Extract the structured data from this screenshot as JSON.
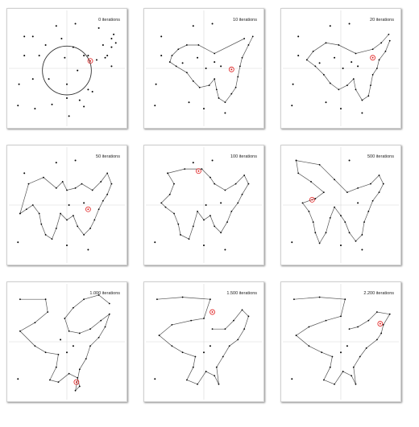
{
  "colors": {
    "background": "#ffffff",
    "panel_border": "#d0d0d0",
    "gridline": "#d8d8d8",
    "point": "#000000",
    "tour": "#555555",
    "highlight": "#e02020"
  },
  "panel_labels": [
    "0 iterations",
    "10 iterations",
    "20 iterations",
    "50 iterations",
    "100 iterations",
    "500 iterations",
    "1.000 iterations",
    "1.500 iterations",
    "2.200 iterations"
  ],
  "chart_data": [
    {
      "type": "scatter",
      "title": "0 iterations",
      "xlim": [
        0,
        1
      ],
      "ylim": [
        0,
        1
      ],
      "grid": true,
      "points": [
        [
          0.04,
          0.15
        ],
        [
          0.05,
          0.35
        ],
        [
          0.1,
          0.62
        ],
        [
          0.1,
          0.8
        ],
        [
          0.18,
          0.8
        ],
        [
          0.18,
          0.4
        ],
        [
          0.2,
          0.12
        ],
        [
          0.24,
          0.62
        ],
        [
          0.3,
          0.72
        ],
        [
          0.33,
          0.4
        ],
        [
          0.36,
          0.16
        ],
        [
          0.4,
          0.9
        ],
        [
          0.45,
          0.78
        ],
        [
          0.48,
          0.6
        ],
        [
          0.5,
          0.35
        ],
        [
          0.5,
          0.22
        ],
        [
          0.52,
          0.05
        ],
        [
          0.56,
          0.7
        ],
        [
          0.58,
          0.92
        ],
        [
          0.6,
          0.48
        ],
        [
          0.62,
          0.2
        ],
        [
          0.66,
          0.62
        ],
        [
          0.66,
          0.14
        ],
        [
          0.7,
          0.62
        ],
        [
          0.7,
          0.3
        ],
        [
          0.74,
          0.28
        ],
        [
          0.78,
          0.58
        ],
        [
          0.8,
          0.88
        ],
        [
          0.84,
          0.72
        ],
        [
          0.86,
          0.6
        ],
        [
          0.88,
          0.62
        ],
        [
          0.92,
          0.7
        ],
        [
          0.92,
          0.78
        ],
        [
          0.94,
          0.82
        ],
        [
          0.96,
          0.74
        ],
        [
          0.92,
          0.52
        ]
      ],
      "circle": {
        "cx": 0.5,
        "cy": 0.48,
        "r": 0.23
      },
      "highlight": [
        0.72,
        0.57
      ]
    },
    {
      "type": "line",
      "title": "10 iterations",
      "xlim": [
        0,
        1
      ],
      "ylim": [
        0,
        1
      ],
      "grid": true,
      "path": [
        [
          0.88,
          0.78
        ],
        [
          0.6,
          0.64
        ],
        [
          0.45,
          0.72
        ],
        [
          0.34,
          0.72
        ],
        [
          0.26,
          0.68
        ],
        [
          0.2,
          0.62
        ],
        [
          0.18,
          0.56
        ],
        [
          0.24,
          0.52
        ],
        [
          0.34,
          0.46
        ],
        [
          0.4,
          0.38
        ],
        [
          0.46,
          0.32
        ],
        [
          0.55,
          0.34
        ],
        [
          0.6,
          0.4
        ],
        [
          0.62,
          0.3
        ],
        [
          0.64,
          0.22
        ],
        [
          0.7,
          0.18
        ],
        [
          0.76,
          0.26
        ],
        [
          0.8,
          0.32
        ],
        [
          0.82,
          0.42
        ],
        [
          0.84,
          0.52
        ],
        [
          0.86,
          0.6
        ],
        [
          0.92,
          0.72
        ],
        [
          0.96,
          0.8
        ]
      ],
      "points": [
        [
          0.04,
          0.15
        ],
        [
          0.05,
          0.35
        ],
        [
          0.1,
          0.62
        ],
        [
          0.1,
          0.8
        ],
        [
          0.4,
          0.9
        ],
        [
          0.58,
          0.92
        ],
        [
          0.3,
          0.55
        ],
        [
          0.44,
          0.6
        ],
        [
          0.5,
          0.12
        ],
        [
          0.36,
          0.18
        ],
        [
          0.7,
          0.08
        ],
        [
          0.66,
          0.52
        ],
        [
          0.52,
          0.5
        ],
        [
          0.6,
          0.56
        ]
      ],
      "highlight": [
        0.76,
        0.49
      ]
    },
    {
      "type": "line",
      "title": "20 iterations",
      "xlim": [
        0,
        1
      ],
      "ylim": [
        0,
        1
      ],
      "grid": true,
      "path": [
        [
          0.95,
          0.82
        ],
        [
          0.88,
          0.74
        ],
        [
          0.8,
          0.68
        ],
        [
          0.64,
          0.64
        ],
        [
          0.48,
          0.72
        ],
        [
          0.36,
          0.74
        ],
        [
          0.24,
          0.66
        ],
        [
          0.18,
          0.58
        ],
        [
          0.26,
          0.52
        ],
        [
          0.34,
          0.44
        ],
        [
          0.4,
          0.36
        ],
        [
          0.48,
          0.3
        ],
        [
          0.56,
          0.34
        ],
        [
          0.62,
          0.4
        ],
        [
          0.64,
          0.3
        ],
        [
          0.7,
          0.2
        ],
        [
          0.76,
          0.24
        ],
        [
          0.78,
          0.34
        ],
        [
          0.8,
          0.44
        ],
        [
          0.84,
          0.5
        ],
        [
          0.86,
          0.58
        ],
        [
          0.92,
          0.66
        ],
        [
          0.96,
          0.76
        ]
      ],
      "points": [
        [
          0.04,
          0.15
        ],
        [
          0.05,
          0.35
        ],
        [
          0.1,
          0.62
        ],
        [
          0.1,
          0.8
        ],
        [
          0.4,
          0.9
        ],
        [
          0.58,
          0.92
        ],
        [
          0.3,
          0.55
        ],
        [
          0.44,
          0.6
        ],
        [
          0.5,
          0.12
        ],
        [
          0.36,
          0.18
        ],
        [
          0.7,
          0.08
        ],
        [
          0.66,
          0.52
        ],
        [
          0.52,
          0.5
        ],
        [
          0.6,
          0.56
        ]
      ],
      "highlight": [
        0.8,
        0.6
      ]
    },
    {
      "type": "line",
      "title": "50 iterations",
      "xlim": [
        0,
        1
      ],
      "ylim": [
        0,
        1
      ],
      "grid": true,
      "path": [
        [
          0.06,
          0.42
        ],
        [
          0.14,
          0.7
        ],
        [
          0.28,
          0.76
        ],
        [
          0.4,
          0.66
        ],
        [
          0.46,
          0.72
        ],
        [
          0.5,
          0.64
        ],
        [
          0.58,
          0.66
        ],
        [
          0.64,
          0.7
        ],
        [
          0.74,
          0.64
        ],
        [
          0.82,
          0.72
        ],
        [
          0.88,
          0.8
        ],
        [
          0.92,
          0.7
        ],
        [
          0.88,
          0.6
        ],
        [
          0.84,
          0.54
        ],
        [
          0.8,
          0.46
        ],
        [
          0.76,
          0.36
        ],
        [
          0.72,
          0.28
        ],
        [
          0.66,
          0.22
        ],
        [
          0.6,
          0.3
        ],
        [
          0.56,
          0.4
        ],
        [
          0.5,
          0.36
        ],
        [
          0.44,
          0.42
        ],
        [
          0.4,
          0.28
        ],
        [
          0.36,
          0.18
        ],
        [
          0.3,
          0.22
        ],
        [
          0.26,
          0.32
        ],
        [
          0.24,
          0.42
        ],
        [
          0.18,
          0.5
        ],
        [
          0.12,
          0.46
        ],
        [
          0.06,
          0.42
        ]
      ],
      "points": [
        [
          0.04,
          0.15
        ],
        [
          0.1,
          0.8
        ],
        [
          0.4,
          0.9
        ],
        [
          0.58,
          0.92
        ],
        [
          0.5,
          0.12
        ],
        [
          0.7,
          0.08
        ],
        [
          0.66,
          0.52
        ],
        [
          0.52,
          0.5
        ]
      ],
      "highlight": [
        0.7,
        0.46
      ]
    },
    {
      "type": "line",
      "title": "100 iterations",
      "xlim": [
        0,
        1
      ],
      "ylim": [
        0,
        1
      ],
      "grid": true,
      "path": [
        [
          0.16,
          0.8
        ],
        [
          0.32,
          0.84
        ],
        [
          0.48,
          0.84
        ],
        [
          0.56,
          0.76
        ],
        [
          0.6,
          0.7
        ],
        [
          0.7,
          0.64
        ],
        [
          0.8,
          0.7
        ],
        [
          0.88,
          0.78
        ],
        [
          0.92,
          0.7
        ],
        [
          0.86,
          0.6
        ],
        [
          0.82,
          0.52
        ],
        [
          0.76,
          0.44
        ],
        [
          0.72,
          0.34
        ],
        [
          0.66,
          0.24
        ],
        [
          0.6,
          0.3
        ],
        [
          0.56,
          0.4
        ],
        [
          0.5,
          0.36
        ],
        [
          0.44,
          0.44
        ],
        [
          0.4,
          0.3
        ],
        [
          0.36,
          0.18
        ],
        [
          0.28,
          0.22
        ],
        [
          0.26,
          0.32
        ],
        [
          0.22,
          0.42
        ],
        [
          0.14,
          0.48
        ],
        [
          0.1,
          0.52
        ],
        [
          0.18,
          0.6
        ],
        [
          0.22,
          0.7
        ],
        [
          0.16,
          0.8
        ]
      ],
      "points": [
        [
          0.04,
          0.15
        ],
        [
          0.4,
          0.9
        ],
        [
          0.58,
          0.92
        ],
        [
          0.5,
          0.12
        ],
        [
          0.7,
          0.08
        ],
        [
          0.66,
          0.52
        ],
        [
          0.52,
          0.5
        ]
      ],
      "highlight": [
        0.45,
        0.82
      ]
    },
    {
      "type": "line",
      "title": "500 iterations",
      "xlim": [
        0,
        1
      ],
      "ylim": [
        0,
        1
      ],
      "grid": true,
      "path": [
        [
          0.08,
          0.92
        ],
        [
          0.3,
          0.88
        ],
        [
          0.44,
          0.74
        ],
        [
          0.56,
          0.62
        ],
        [
          0.66,
          0.66
        ],
        [
          0.78,
          0.7
        ],
        [
          0.86,
          0.78
        ],
        [
          0.9,
          0.7
        ],
        [
          0.86,
          0.62
        ],
        [
          0.8,
          0.54
        ],
        [
          0.76,
          0.44
        ],
        [
          0.72,
          0.34
        ],
        [
          0.7,
          0.22
        ],
        [
          0.64,
          0.16
        ],
        [
          0.58,
          0.24
        ],
        [
          0.54,
          0.34
        ],
        [
          0.5,
          0.4
        ],
        [
          0.44,
          0.48
        ],
        [
          0.4,
          0.38
        ],
        [
          0.36,
          0.24
        ],
        [
          0.3,
          0.14
        ],
        [
          0.26,
          0.24
        ],
        [
          0.24,
          0.34
        ],
        [
          0.2,
          0.44
        ],
        [
          0.14,
          0.52
        ],
        [
          0.26,
          0.56
        ],
        [
          0.34,
          0.62
        ],
        [
          0.22,
          0.72
        ],
        [
          0.1,
          0.8
        ],
        [
          0.08,
          0.92
        ]
      ],
      "points": [
        [
          0.04,
          0.15
        ],
        [
          0.58,
          0.92
        ],
        [
          0.5,
          0.12
        ],
        [
          0.7,
          0.08
        ],
        [
          0.66,
          0.52
        ]
      ],
      "highlight": [
        0.23,
        0.55
      ]
    },
    {
      "type": "line",
      "title": "1.000 iterations",
      "xlim": [
        0,
        1
      ],
      "ylim": [
        0,
        1
      ],
      "grid": true,
      "path": [
        [
          0.06,
          0.9
        ],
        [
          0.3,
          0.9
        ],
        [
          0.32,
          0.78
        ],
        [
          0.2,
          0.68
        ],
        [
          0.06,
          0.6
        ],
        [
          0.2,
          0.46
        ],
        [
          0.3,
          0.4
        ],
        [
          0.42,
          0.38
        ],
        [
          0.4,
          0.26
        ],
        [
          0.34,
          0.14
        ],
        [
          0.42,
          0.12
        ],
        [
          0.52,
          0.2
        ],
        [
          0.6,
          0.16
        ],
        [
          0.62,
          0.08
        ],
        [
          0.58,
          0.04
        ],
        [
          0.62,
          0.24
        ],
        [
          0.68,
          0.34
        ],
        [
          0.72,
          0.46
        ],
        [
          0.8,
          0.54
        ],
        [
          0.86,
          0.64
        ],
        [
          0.9,
          0.76
        ],
        [
          0.82,
          0.7
        ],
        [
          0.72,
          0.62
        ],
        [
          0.62,
          0.58
        ],
        [
          0.52,
          0.6
        ],
        [
          0.48,
          0.72
        ],
        [
          0.56,
          0.82
        ],
        [
          0.66,
          0.9
        ],
        [
          0.8,
          0.94
        ],
        [
          0.9,
          0.86
        ]
      ],
      "points": [
        [
          0.04,
          0.15
        ],
        [
          0.5,
          0.4
        ],
        [
          0.56,
          0.46
        ],
        [
          0.44,
          0.52
        ]
      ],
      "highlight": [
        0.59,
        0.12
      ]
    },
    {
      "type": "line",
      "title": "1.500 iterations",
      "xlim": [
        0,
        1
      ],
      "ylim": [
        0,
        1
      ],
      "grid": true,
      "path": [
        [
          0.06,
          0.9
        ],
        [
          0.3,
          0.92
        ],
        [
          0.56,
          0.9
        ],
        [
          0.5,
          0.72
        ],
        [
          0.38,
          0.7
        ],
        [
          0.2,
          0.66
        ],
        [
          0.08,
          0.56
        ],
        [
          0.2,
          0.46
        ],
        [
          0.3,
          0.4
        ],
        [
          0.42,
          0.36
        ],
        [
          0.4,
          0.26
        ],
        [
          0.34,
          0.14
        ],
        [
          0.44,
          0.1
        ],
        [
          0.52,
          0.22
        ],
        [
          0.6,
          0.18
        ],
        [
          0.64,
          0.1
        ],
        [
          0.62,
          0.26
        ],
        [
          0.68,
          0.36
        ],
        [
          0.74,
          0.46
        ],
        [
          0.82,
          0.52
        ],
        [
          0.88,
          0.62
        ],
        [
          0.92,
          0.74
        ],
        [
          0.86,
          0.8
        ],
        [
          0.78,
          0.7
        ],
        [
          0.7,
          0.62
        ],
        [
          0.58,
          0.62
        ]
      ],
      "points": [
        [
          0.04,
          0.15
        ],
        [
          0.5,
          0.4
        ],
        [
          0.56,
          0.46
        ]
      ],
      "highlight": [
        0.58,
        0.78
      ]
    },
    {
      "type": "line",
      "title": "2.200 iterations",
      "xlim": [
        0,
        1
      ],
      "ylim": [
        0,
        1
      ],
      "grid": true,
      "path": [
        [
          0.06,
          0.9
        ],
        [
          0.3,
          0.92
        ],
        [
          0.54,
          0.9
        ],
        [
          0.5,
          0.74
        ],
        [
          0.36,
          0.7
        ],
        [
          0.2,
          0.64
        ],
        [
          0.08,
          0.56
        ],
        [
          0.2,
          0.46
        ],
        [
          0.32,
          0.4
        ],
        [
          0.42,
          0.36
        ],
        [
          0.4,
          0.26
        ],
        [
          0.34,
          0.14
        ],
        [
          0.44,
          0.1
        ],
        [
          0.52,
          0.22
        ],
        [
          0.6,
          0.18
        ],
        [
          0.64,
          0.1
        ],
        [
          0.62,
          0.26
        ],
        [
          0.68,
          0.36
        ],
        [
          0.74,
          0.44
        ],
        [
          0.84,
          0.52
        ],
        [
          0.88,
          0.58
        ],
        [
          0.9,
          0.66
        ],
        [
          0.96,
          0.76
        ],
        [
          0.84,
          0.78
        ],
        [
          0.76,
          0.7
        ],
        [
          0.66,
          0.64
        ],
        [
          0.58,
          0.62
        ]
      ],
      "points": [
        [
          0.04,
          0.15
        ],
        [
          0.5,
          0.4
        ],
        [
          0.56,
          0.46
        ]
      ],
      "highlight": [
        0.87,
        0.67
      ]
    }
  ]
}
